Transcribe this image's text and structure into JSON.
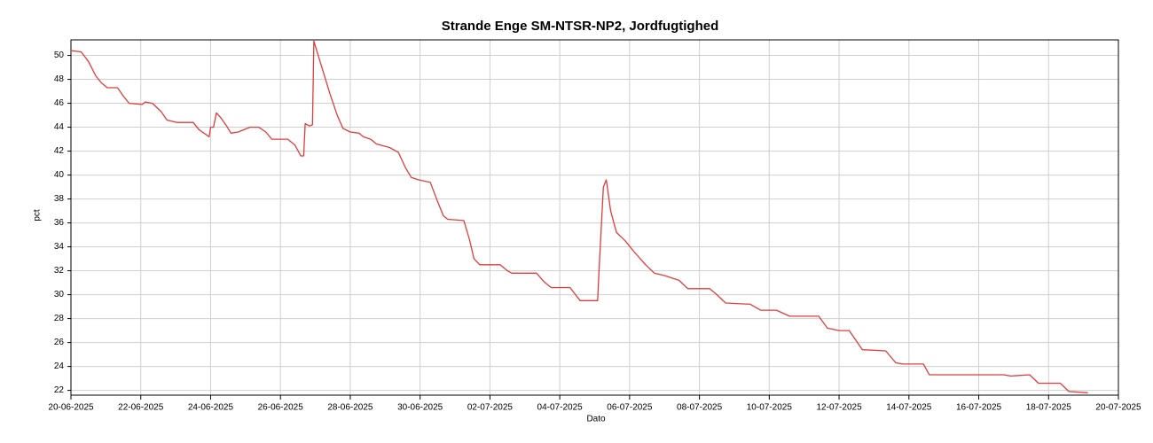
{
  "chart_data": {
    "type": "line",
    "title": "Strande Enge SM-NTSR-NP2, Jordfugtighed",
    "xlabel": "Dato",
    "ylabel": "pct",
    "x": [
      "2025-06-20T00:00",
      "2025-06-20T07:00",
      "2025-06-20T12:00",
      "2025-06-20T17:00",
      "2025-06-20T21:00",
      "2025-06-21T01:00",
      "2025-06-21T08:00",
      "2025-06-21T12:00",
      "2025-06-21T16:00",
      "2025-06-22T01:00",
      "2025-06-22T03:00",
      "2025-06-22T08:00",
      "2025-06-22T14:00",
      "2025-06-22T18:00",
      "2025-06-23T01:00",
      "2025-06-23T12:00",
      "2025-06-23T16:00",
      "2025-06-23T23:00",
      "2025-06-24T00:00",
      "2025-06-24T02:00",
      "2025-06-24T04:00",
      "2025-06-24T07:00",
      "2025-06-24T11:00",
      "2025-06-24T14:00",
      "2025-06-24T19:00",
      "2025-06-25T03:00",
      "2025-06-25T09:00",
      "2025-06-25T14:00",
      "2025-06-25T18:00",
      "2025-06-26T05:00",
      "2025-06-26T10:00",
      "2025-06-26T14:00",
      "2025-06-26T16:00",
      "2025-06-26T17:00",
      "2025-06-26T20:00",
      "2025-06-26T22:00",
      "2025-06-26T23:00",
      "2025-06-27T04:00",
      "2025-06-27T10:00",
      "2025-06-27T15:00",
      "2025-06-27T19:00",
      "2025-06-28T00:00",
      "2025-06-28T06:00",
      "2025-06-28T09:00",
      "2025-06-28T14:00",
      "2025-06-28T18:00",
      "2025-06-29T03:00",
      "2025-06-29T09:00",
      "2025-06-29T14:00",
      "2025-06-29T18:00",
      "2025-06-29T23:00",
      "2025-06-30T07:00",
      "2025-06-30T12:00",
      "2025-06-30T16:00",
      "2025-06-30T19:00",
      "2025-07-01T06:00",
      "2025-07-01T10:00",
      "2025-07-01T13:00",
      "2025-07-01T17:00",
      "2025-07-01T21:00",
      "2025-07-02T07:00",
      "2025-07-02T12:00",
      "2025-07-02T15:00",
      "2025-07-03T08:00",
      "2025-07-03T13:00",
      "2025-07-03T18:00",
      "2025-07-04T07:00",
      "2025-07-04T14:00",
      "2025-07-05T02:00",
      "2025-07-05T03:00",
      "2025-07-05T06:00",
      "2025-07-05T08:00",
      "2025-07-05T11:00",
      "2025-07-05T15:00",
      "2025-07-05T21:00",
      "2025-07-06T03:00",
      "2025-07-06T11:00",
      "2025-07-06T17:00",
      "2025-07-07T00:00",
      "2025-07-07T10:00",
      "2025-07-07T16:00",
      "2025-07-08T07:00",
      "2025-07-08T12:00",
      "2025-07-08T18:00",
      "2025-07-09T11:00",
      "2025-07-09T18:00",
      "2025-07-10T05:00",
      "2025-07-10T14:00",
      "2025-07-11T10:00",
      "2025-07-11T16:00",
      "2025-07-12T00:00",
      "2025-07-12T07:00",
      "2025-07-12T16:00",
      "2025-07-13T08:00",
      "2025-07-13T15:00",
      "2025-07-13T20:00",
      "2025-07-14T10:00",
      "2025-07-14T14:00",
      "2025-07-16T17:00",
      "2025-07-16T22:00",
      "2025-07-17T11:00",
      "2025-07-17T17:00",
      "2025-07-18T08:00",
      "2025-07-18T14:00",
      "2025-07-19T03:00"
    ],
    "series": [
      {
        "color": "#e03c3c",
        "values": [
          50.4,
          50.3,
          49.5,
          48.3,
          47.7,
          47.3,
          47.3,
          46.6,
          46.0,
          45.9,
          46.1,
          46.0,
          45.3,
          44.6,
          44.4,
          44.4,
          43.8,
          43.2,
          44.0,
          44.0,
          45.2,
          44.8,
          44.1,
          43.5,
          43.6,
          44.0,
          44.0,
          43.6,
          43.0,
          43.0,
          42.5,
          41.6,
          41.6,
          44.3,
          44.1,
          44.2,
          51.2,
          49.2,
          46.8,
          45.0,
          43.9,
          43.6,
          43.5,
          43.2,
          43.0,
          42.6,
          42.3,
          41.9,
          40.6,
          39.8,
          39.6,
          39.4,
          37.8,
          36.6,
          36.3,
          36.2,
          34.6,
          33.0,
          32.5,
          32.5,
          32.5,
          32.0,
          31.8,
          31.8,
          31.1,
          30.6,
          30.6,
          29.5,
          29.5,
          32.0,
          39.0,
          39.6,
          37.0,
          35.2,
          34.5,
          33.6,
          32.5,
          31.8,
          31.6,
          31.2,
          30.5,
          30.5,
          30.0,
          29.3,
          29.2,
          28.7,
          28.7,
          28.2,
          28.2,
          27.2,
          27.0,
          27.0,
          25.4,
          25.3,
          24.3,
          24.2,
          24.2,
          23.3,
          23.3,
          23.2,
          23.3,
          22.6,
          22.6,
          21.9,
          21.8
        ]
      }
    ],
    "xlim": [
      "2025-06-20T00:00",
      "2025-07-20T00:00"
    ],
    "xticks": [
      {
        "value": "2025-06-20T00:00",
        "label": "20-06-2025"
      },
      {
        "value": "2025-06-22T00:00",
        "label": "22-06-2025"
      },
      {
        "value": "2025-06-24T00:00",
        "label": "24-06-2025"
      },
      {
        "value": "2025-06-26T00:00",
        "label": "26-06-2025"
      },
      {
        "value": "2025-06-28T00:00",
        "label": "28-06-2025"
      },
      {
        "value": "2025-06-30T00:00",
        "label": "30-06-2025"
      },
      {
        "value": "2025-07-02T00:00",
        "label": "02-07-2025"
      },
      {
        "value": "2025-07-04T00:00",
        "label": "04-07-2025"
      },
      {
        "value": "2025-07-06T00:00",
        "label": "06-07-2025"
      },
      {
        "value": "2025-07-08T00:00",
        "label": "08-07-2025"
      },
      {
        "value": "2025-07-10T00:00",
        "label": "10-07-2025"
      },
      {
        "value": "2025-07-12T00:00",
        "label": "12-07-2025"
      },
      {
        "value": "2025-07-14T00:00",
        "label": "14-07-2025"
      },
      {
        "value": "2025-07-16T00:00",
        "label": "16-07-2025"
      },
      {
        "value": "2025-07-18T00:00",
        "label": "18-07-2025"
      },
      {
        "value": "2025-07-20T00:00",
        "label": "20-07-2025"
      }
    ],
    "ylim": [
      21.6,
      51.3
    ],
    "yticks": [
      22,
      24,
      26,
      28,
      30,
      32,
      34,
      36,
      38,
      40,
      42,
      44,
      46,
      48,
      50
    ],
    "grid": true
  }
}
